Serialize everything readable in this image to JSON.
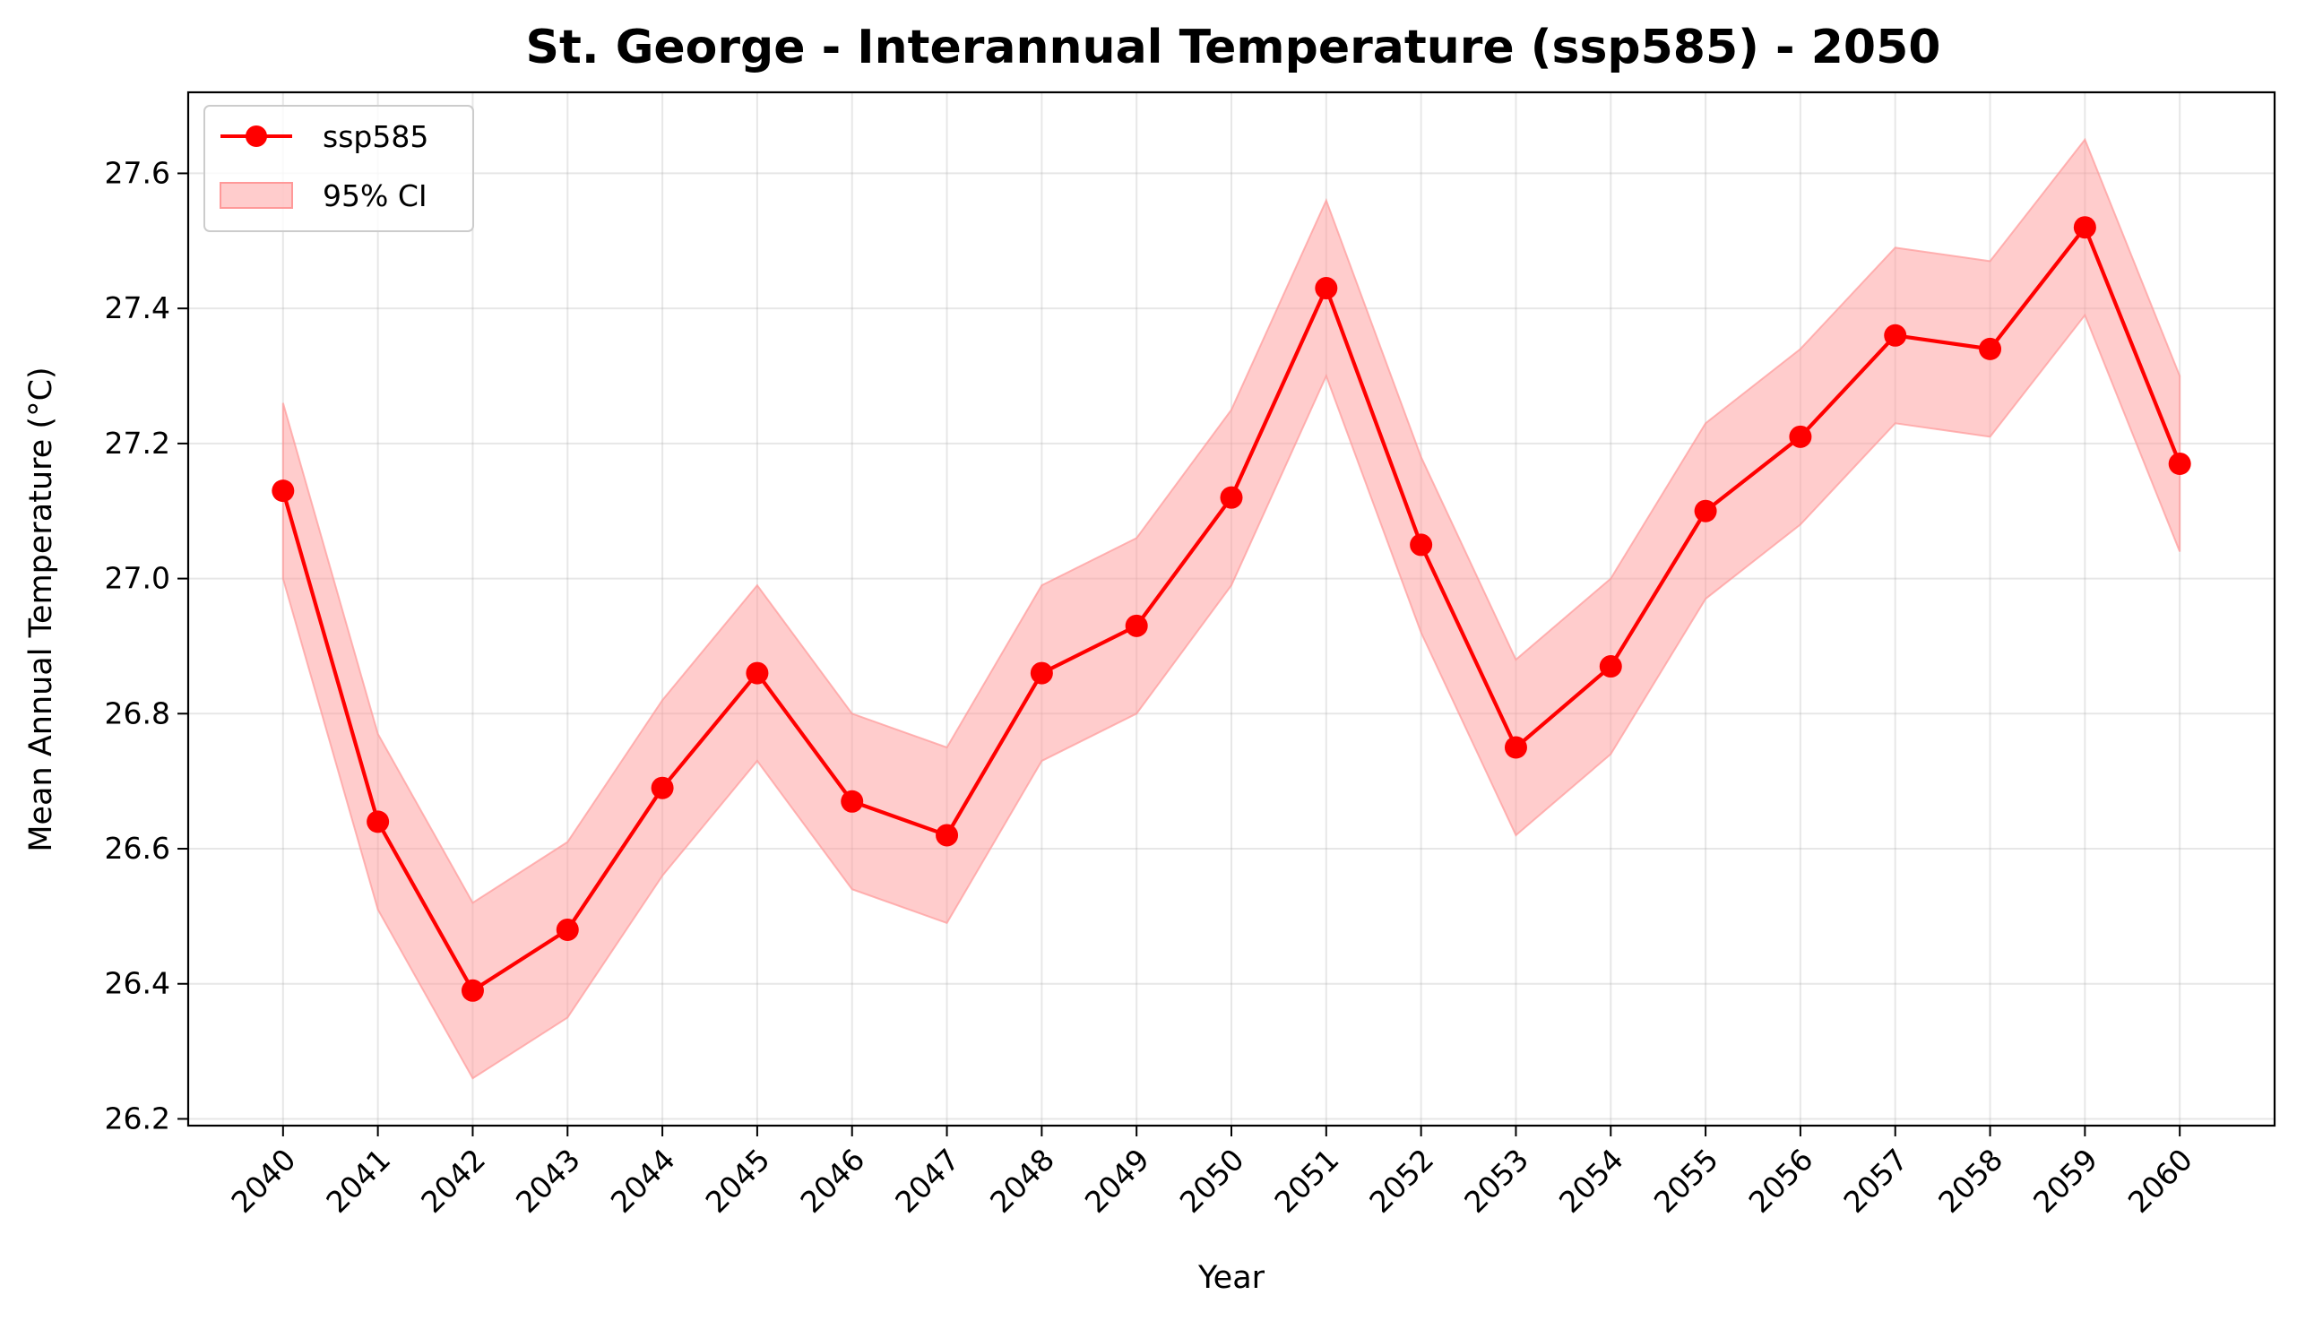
{
  "chart_data": {
    "type": "line",
    "title": "St. George - Interannual Temperature (ssp585) - 2050",
    "xlabel": "Year",
    "ylabel": "Mean Annual Temperature (°C)",
    "x": [
      2040,
      2041,
      2042,
      2043,
      2044,
      2045,
      2046,
      2047,
      2048,
      2049,
      2050,
      2051,
      2052,
      2053,
      2054,
      2055,
      2056,
      2057,
      2058,
      2059,
      2060
    ],
    "xtick_labels": [
      "2040",
      "2041",
      "2042",
      "2043",
      "2044",
      "2045",
      "2046",
      "2047",
      "2048",
      "2049",
      "2050",
      "2051",
      "2052",
      "2053",
      "2054",
      "2055",
      "2056",
      "2057",
      "2058",
      "2059",
      "2060"
    ],
    "series": [
      {
        "name": "ssp585",
        "values": [
          27.13,
          26.64,
          26.39,
          26.48,
          26.69,
          26.86,
          26.67,
          26.62,
          26.86,
          26.93,
          27.12,
          27.43,
          27.05,
          26.75,
          26.87,
          27.1,
          27.21,
          27.36,
          27.34,
          27.52,
          27.17
        ],
        "color": "#ff0000"
      }
    ],
    "ci": {
      "name": "95% CI",
      "lower": [
        27.0,
        26.51,
        26.26,
        26.35,
        26.56,
        26.73,
        26.54,
        26.49,
        26.73,
        26.8,
        26.99,
        27.3,
        26.92,
        26.62,
        26.74,
        26.97,
        27.08,
        27.23,
        27.21,
        27.39,
        27.04
      ],
      "upper": [
        27.26,
        26.77,
        26.52,
        26.61,
        26.82,
        26.99,
        26.8,
        26.75,
        26.99,
        27.06,
        27.25,
        27.56,
        27.18,
        26.88,
        27.0,
        27.23,
        27.34,
        27.49,
        27.47,
        27.65,
        27.3
      ],
      "color": "#ff9999"
    },
    "ylim": [
      26.19,
      27.72
    ],
    "yticks": [
      26.2,
      26.4,
      26.6,
      26.8,
      27.0,
      27.2,
      27.4,
      27.6
    ],
    "ytick_labels": [
      "26.2",
      "26.4",
      "26.6",
      "26.8",
      "27.0",
      "27.2",
      "27.4",
      "27.6"
    ],
    "grid": true,
    "legend_position": "top-left",
    "legend": [
      "ssp585",
      "95% CI"
    ]
  }
}
